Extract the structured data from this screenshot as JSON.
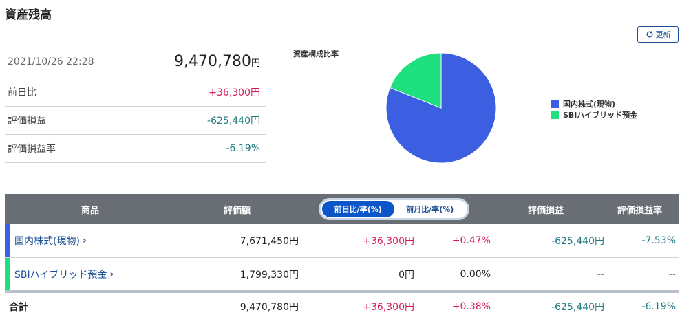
{
  "page": {
    "title": "資産残高"
  },
  "refresh": {
    "label": "更新",
    "icon": "refresh-icon"
  },
  "summary": {
    "datetime": "2021/10/26 22:28",
    "total": "9,470,780",
    "total_unit": "円",
    "rows": [
      {
        "label": "前日比",
        "value": "+36,300円"
      },
      {
        "label": "評価損益",
        "value": "-625,440円"
      },
      {
        "label": "評価損益率",
        "value": "-6.19%"
      }
    ]
  },
  "chart_data": {
    "type": "pie",
    "title": "資産構成比率",
    "labels": [
      "国内株式(現物)",
      "SBIハイブリッド預金"
    ],
    "values": [
      7671450,
      1799330
    ],
    "colors": [
      "#3b5fe0",
      "#1fe07f"
    ]
  },
  "table": {
    "headers": {
      "product": "商品",
      "valuation": "評価額",
      "toggle_day": "前日比/率(%)",
      "toggle_month": "前月比/率(%)",
      "pl": "評価損益",
      "pl_rate": "評価損益率"
    },
    "rows": [
      {
        "name": "国内株式(現物)",
        "valuation": "7,671,450円",
        "diff": "+36,300円",
        "diff_rate": "+0.47%",
        "pl": "-625,440円",
        "pl_rate": "-7.53%",
        "color": "#3b5fe0"
      },
      {
        "name": "SBIハイブリッド預金",
        "valuation": "1,799,330円",
        "diff": "0円",
        "diff_rate": "0.00%",
        "pl": "--",
        "pl_rate": "--",
        "color": "#1fe07f"
      }
    ],
    "total": {
      "label": "合計",
      "valuation": "9,470,780円",
      "diff": "+36,300円",
      "diff_rate": "+0.38%",
      "pl": "-625,440円",
      "pl_rate": "-6.19%"
    },
    "chevron": "›"
  }
}
